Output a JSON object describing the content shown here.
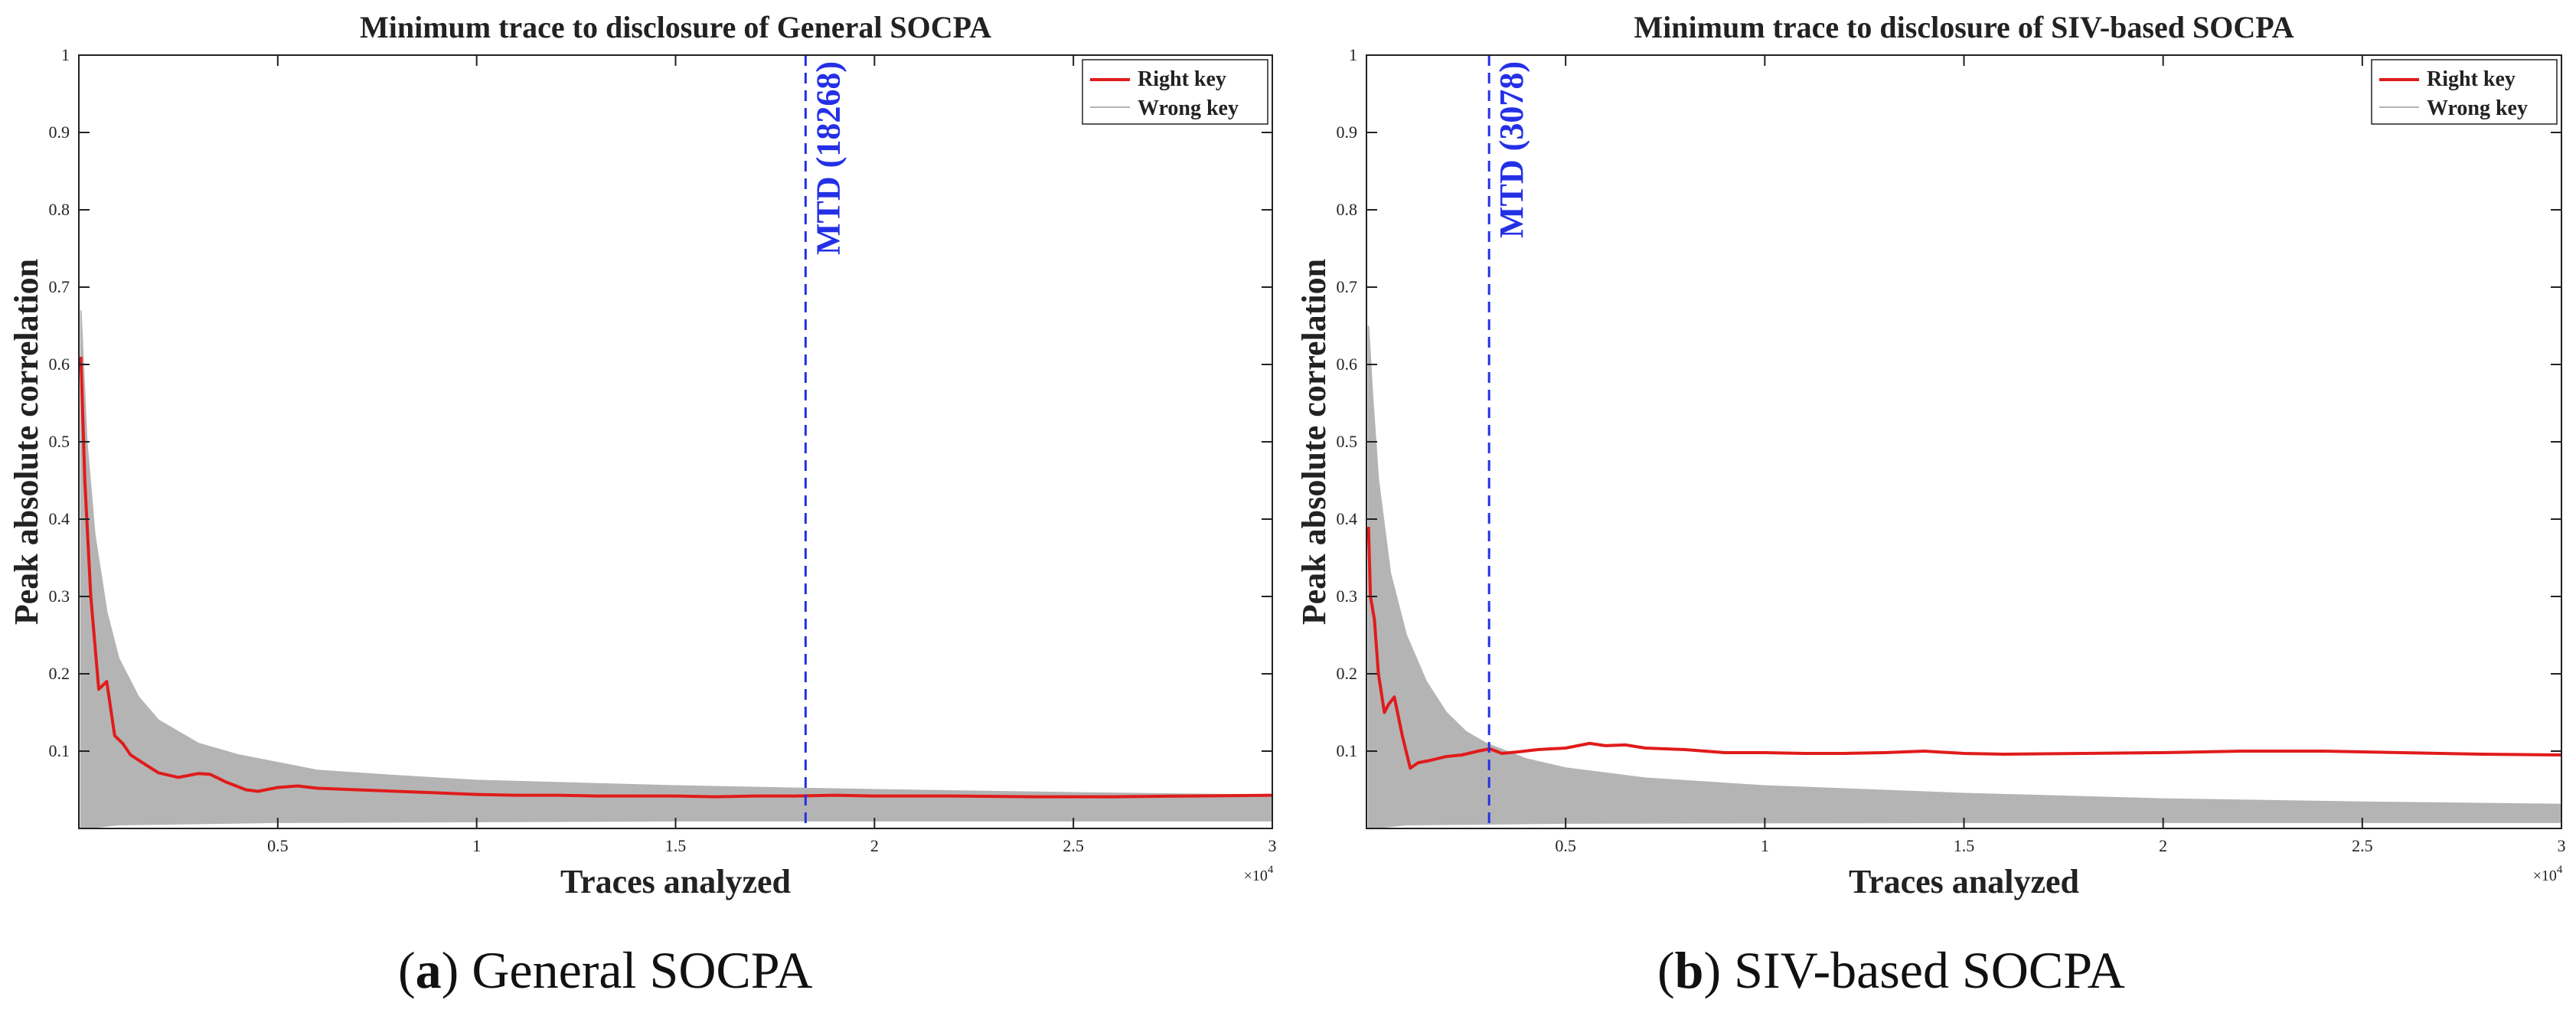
{
  "chart_data": [
    {
      "type": "line",
      "title": "Minimum trace to disclosure of General SOCPA",
      "xlabel": "Traces analyzed",
      "ylabel": "Peak absolute correlation",
      "x_multiplier": "×10",
      "x_multiplier_exp": "4",
      "xlim": [
        0,
        30000
      ],
      "ylim": [
        0,
        1
      ],
      "xticks": [
        0.5,
        1,
        1.5,
        2,
        2.5,
        3
      ],
      "xtick_labels": [
        "0.5",
        "1",
        "1.5",
        "2",
        "2.5",
        "3"
      ],
      "yticks": [
        0.1,
        0.2,
        0.3,
        0.4,
        0.5,
        0.6,
        0.7,
        0.8,
        0.9,
        1
      ],
      "ytick_labels": [
        "0.1",
        "0.2",
        "0.3",
        "0.4",
        "0.5",
        "0.6",
        "0.7",
        "0.8",
        "0.9",
        "1"
      ],
      "legend": {
        "position": "top-right",
        "entries": [
          "Right key",
          "Wrong key"
        ]
      },
      "annotation": {
        "text": "MTD (18268)",
        "x": 18268
      },
      "colors": {
        "right": "#e01b1b",
        "wrong": "#b4b4b4",
        "mtd": "#2430e6"
      },
      "series": [
        {
          "name": "Right key",
          "x": [
            50,
            150,
            300,
            500,
            700,
            900,
            1100,
            1300,
            1600,
            2000,
            2500,
            3000,
            3300,
            3700,
            4200,
            4500,
            5000,
            5500,
            6000,
            7000,
            8000,
            9000,
            10000,
            11000,
            12000,
            13000,
            14000,
            15000,
            16000,
            17000,
            18000,
            19000,
            20000,
            22000,
            24000,
            26000,
            28000,
            30000
          ],
          "values": [
            0.61,
            0.45,
            0.3,
            0.18,
            0.19,
            0.12,
            0.11,
            0.095,
            0.085,
            0.072,
            0.066,
            0.071,
            0.07,
            0.06,
            0.05,
            0.048,
            0.053,
            0.055,
            0.052,
            0.05,
            0.048,
            0.046,
            0.044,
            0.043,
            0.043,
            0.042,
            0.042,
            0.042,
            0.041,
            0.042,
            0.042,
            0.043,
            0.042,
            0.042,
            0.041,
            0.041,
            0.042,
            0.043
          ]
        },
        {
          "name": "Wrong key",
          "upper": [
            [
              50,
              0.67
            ],
            [
              200,
              0.5
            ],
            [
              400,
              0.38
            ],
            [
              700,
              0.28
            ],
            [
              1000,
              0.22
            ],
            [
              1500,
              0.17
            ],
            [
              2000,
              0.14
            ],
            [
              3000,
              0.11
            ],
            [
              4000,
              0.095
            ],
            [
              5000,
              0.085
            ],
            [
              6000,
              0.075
            ],
            [
              8000,
              0.068
            ],
            [
              10000,
              0.062
            ],
            [
              15000,
              0.055
            ],
            [
              20000,
              0.05
            ],
            [
              25000,
              0.046
            ],
            [
              30000,
              0.043
            ]
          ],
          "lower": [
            [
              50,
              0.0
            ],
            [
              1000,
              0.005
            ],
            [
              5000,
              0.008
            ],
            [
              15000,
              0.01
            ],
            [
              30000,
              0.01
            ]
          ]
        }
      ]
    },
    {
      "type": "line",
      "title": "Minimum trace to disclosure of SIV-based SOCPA",
      "xlabel": "Traces analyzed",
      "ylabel": "Peak absolute correlation",
      "x_multiplier": "×10",
      "x_multiplier_exp": "4",
      "xlim": [
        0,
        30000
      ],
      "ylim": [
        0,
        1
      ],
      "xticks": [
        0.5,
        1,
        1.5,
        2,
        2.5,
        3
      ],
      "xtick_labels": [
        "0.5",
        "1",
        "1.5",
        "2",
        "2.5",
        "3"
      ],
      "yticks": [
        0.1,
        0.2,
        0.3,
        0.4,
        0.5,
        0.6,
        0.7,
        0.8,
        0.9,
        1
      ],
      "ytick_labels": [
        "0.1",
        "0.2",
        "0.3",
        "0.4",
        "0.5",
        "0.6",
        "0.7",
        "0.8",
        "0.9",
        "1"
      ],
      "legend": {
        "position": "top-right",
        "entries": [
          "Right key",
          "Wrong key"
        ]
      },
      "annotation": {
        "text": "MTD (3078)",
        "x": 3078
      },
      "colors": {
        "right": "#e01b1b",
        "wrong": "#b4b4b4",
        "mtd": "#2430e6"
      },
      "series": [
        {
          "name": "Right key",
          "x": [
            50,
            100,
            200,
            300,
            450,
            550,
            700,
            900,
            1100,
            1300,
            1600,
            2000,
            2400,
            2800,
            3100,
            3400,
            3800,
            4300,
            5000,
            5600,
            6000,
            6500,
            7000,
            7500,
            8000,
            8500,
            9000,
            10000,
            11000,
            12000,
            13000,
            14000,
            15000,
            16000,
            18000,
            20000,
            22000,
            24000,
            26000,
            28000,
            30000
          ],
          "values": [
            0.39,
            0.3,
            0.27,
            0.2,
            0.15,
            0.16,
            0.17,
            0.12,
            0.078,
            0.085,
            0.088,
            0.093,
            0.095,
            0.1,
            0.103,
            0.097,
            0.099,
            0.102,
            0.104,
            0.11,
            0.107,
            0.108,
            0.104,
            0.103,
            0.102,
            0.1,
            0.098,
            0.098,
            0.097,
            0.097,
            0.098,
            0.1,
            0.097,
            0.096,
            0.097,
            0.098,
            0.1,
            0.1,
            0.098,
            0.096,
            0.095
          ]
        },
        {
          "name": "Wrong key",
          "upper": [
            [
              50,
              0.65
            ],
            [
              150,
              0.56
            ],
            [
              300,
              0.45
            ],
            [
              600,
              0.33
            ],
            [
              1000,
              0.25
            ],
            [
              1500,
              0.19
            ],
            [
              2000,
              0.15
            ],
            [
              2500,
              0.125
            ],
            [
              3000,
              0.11
            ],
            [
              4000,
              0.09
            ],
            [
              5000,
              0.078
            ],
            [
              7000,
              0.065
            ],
            [
              10000,
              0.055
            ],
            [
              15000,
              0.045
            ],
            [
              20000,
              0.038
            ],
            [
              25000,
              0.034
            ],
            [
              30000,
              0.031
            ]
          ],
          "lower": [
            [
              50,
              0.0
            ],
            [
              1000,
              0.005
            ],
            [
              5000,
              0.007
            ],
            [
              15000,
              0.008
            ],
            [
              30000,
              0.008
            ]
          ]
        }
      ]
    }
  ],
  "captions": [
    {
      "letter": "a",
      "text": "General SOCPA"
    },
    {
      "letter": "b",
      "text": "SIV-based SOCPA"
    }
  ]
}
